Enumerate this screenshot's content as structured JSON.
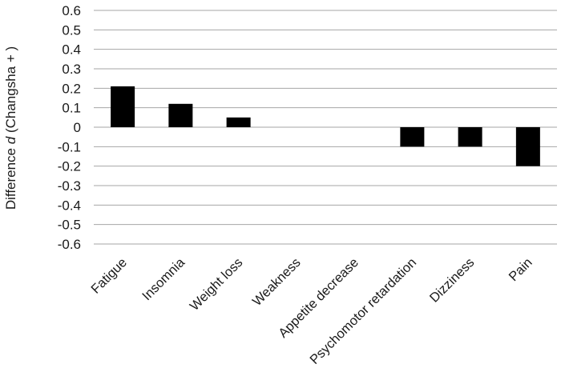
{
  "chart_data": {
    "type": "bar",
    "title": "",
    "xlabel": "",
    "ylabel": {
      "prefix": "Difference ",
      "italic": "d",
      "suffix": " (Changsha + )"
    },
    "ylim": [
      -0.6,
      0.6
    ],
    "yticks": [
      0.6,
      0.5,
      0.4,
      0.3,
      0.2,
      0.1,
      0,
      -0.1,
      -0.2,
      -0.3,
      -0.4,
      -0.5,
      -0.6
    ],
    "ytick_labels": [
      "0.6",
      "0.5",
      "0.4",
      "0.3",
      "0.2",
      "0.1",
      "0",
      "-0.1",
      "-0.2",
      "-0.3",
      "-0.4",
      "-0.5",
      "-0.6"
    ],
    "grid": true,
    "legend": "none",
    "categories": [
      "Fatigue",
      "Insomnia",
      "Weight loss",
      "Weakness",
      "Appetite decrease",
      "Psychomotor retardation",
      "Dizziness",
      "Pain"
    ],
    "values": [
      0.21,
      0.12,
      0.05,
      0,
      0,
      -0.1,
      -0.1,
      -0.2
    ],
    "bar_color": "#000000",
    "grid_color": "#a6a6a6"
  }
}
